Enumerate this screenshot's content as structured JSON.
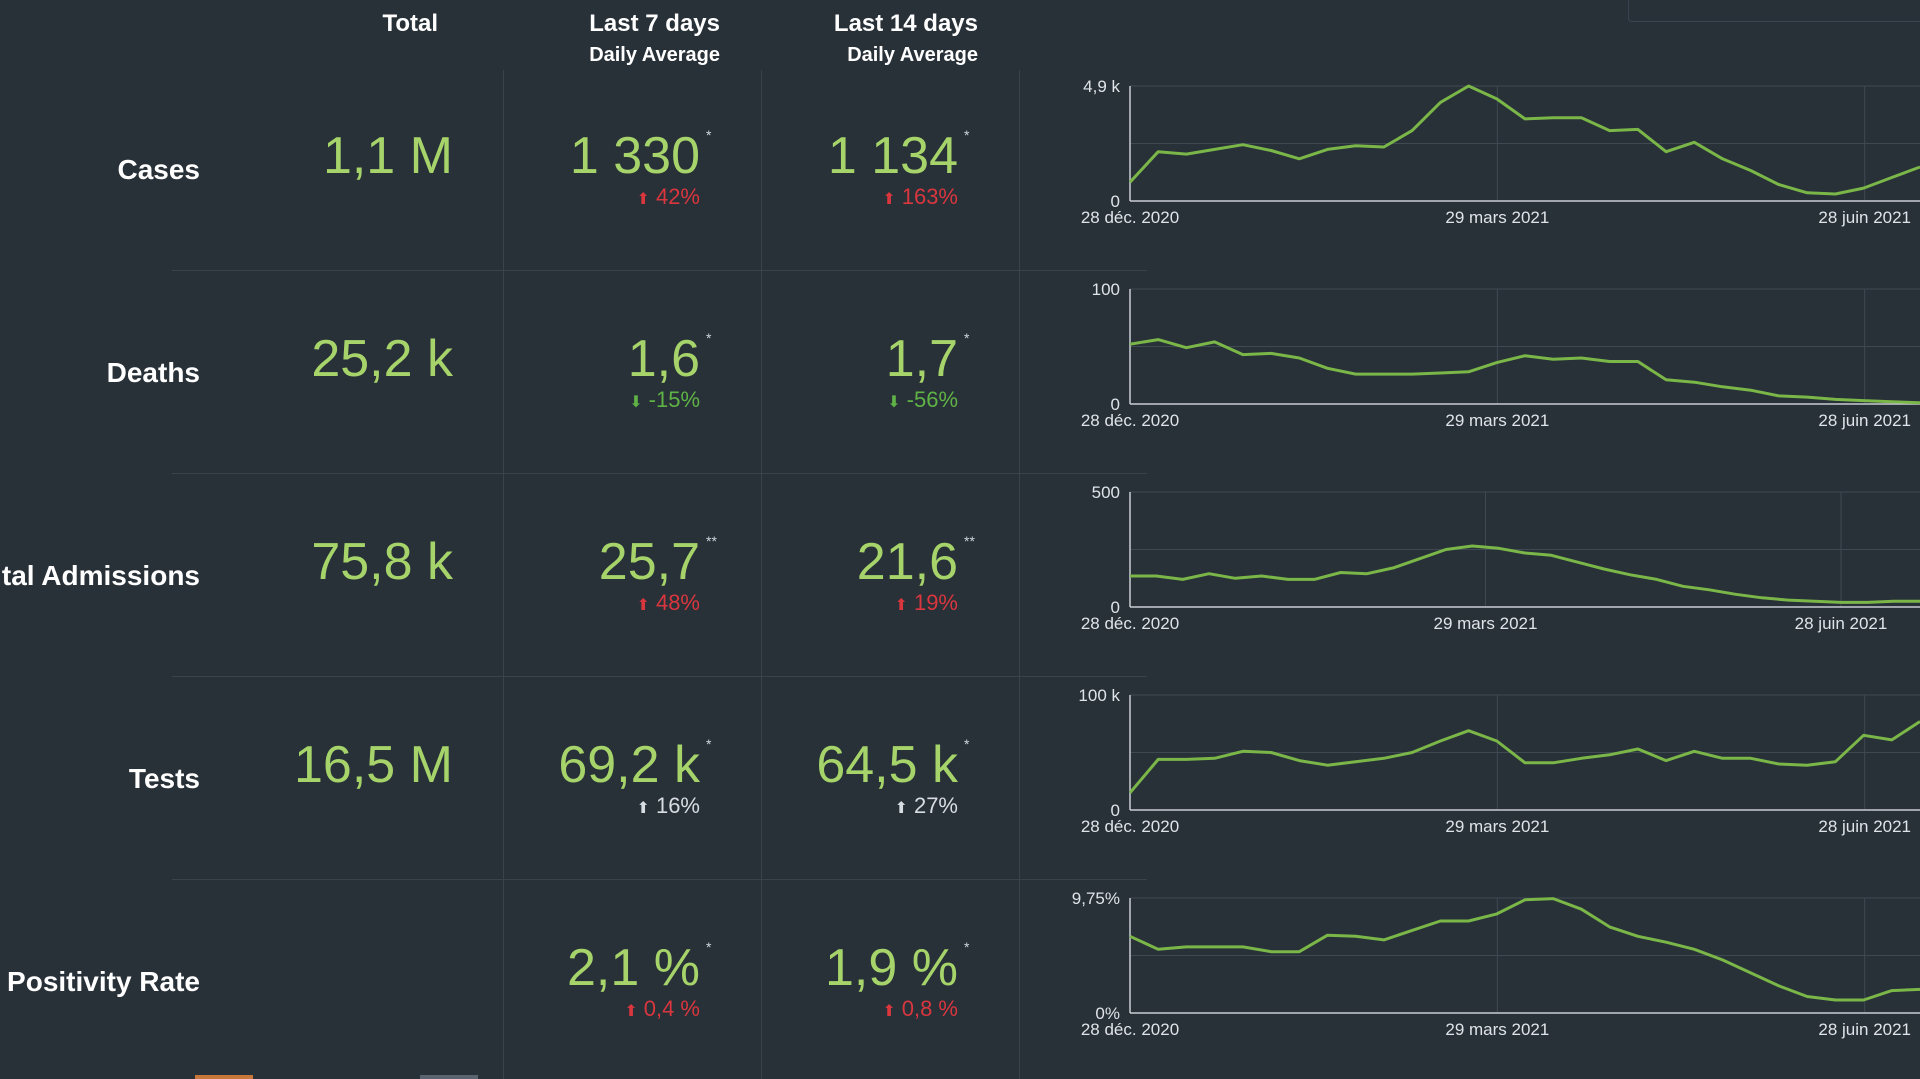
{
  "headers": {
    "total": "Total",
    "last7": "Last 7 days",
    "last7_sub": "Daily Average",
    "last14": "Last 14 days",
    "last14_sub": "Daily Average"
  },
  "colors": {
    "background": "#283038",
    "value_green": "#a6d46a",
    "line_green": "#7ab648",
    "increase_red": "#d9363e",
    "decrease_green": "#5fb346"
  },
  "rows": [
    {
      "label": "Cases",
      "total": "1,1 M",
      "avg7": "1 330",
      "avg7_mark": "*",
      "chg7": "42%",
      "chg7_dir": "up",
      "avg14": "1 134",
      "avg14_mark": "*",
      "chg14": "163%",
      "chg14_dir": "up",
      "chart": {
        "ymax_label": "4,9 k",
        "ymin_label": "0",
        "ymax": 4900,
        "xlabels": [
          "28 déc. 2020",
          "29 mars 2021",
          "28 juin 2021"
        ],
        "values": [
          800,
          2100,
          2000,
          2200,
          2400,
          2150,
          1800,
          2200,
          2350,
          2300,
          3000,
          4200,
          4900,
          4350,
          3500,
          3550,
          3550,
          3000,
          3050,
          2100,
          2500,
          1800,
          1300,
          700,
          350,
          300,
          550,
          1000,
          1450
        ]
      }
    },
    {
      "label": "Deaths",
      "total": "25,2 k",
      "avg7": "1,6",
      "avg7_mark": "*",
      "chg7": "-15%",
      "chg7_dir": "down",
      "avg14": "1,7",
      "avg14_mark": "*",
      "chg14": "-56%",
      "chg14_dir": "down",
      "chart": {
        "ymax_label": "100",
        "ymin_label": "0",
        "ymax": 100,
        "xlabels": [
          "28 déc. 2020",
          "29 mars 2021",
          "28 juin 2021"
        ],
        "values": [
          52,
          56,
          49,
          54,
          43,
          44,
          40,
          31,
          26,
          26,
          26,
          27,
          28,
          36,
          42,
          39,
          40,
          37,
          37,
          21,
          19,
          15,
          12,
          7,
          6,
          4,
          3,
          2,
          1
        ]
      }
    },
    {
      "label": "Hospital Admissions",
      "total": "75,8 k",
      "avg7": "25,7",
      "avg7_mark": "**",
      "chg7": "48%",
      "chg7_dir": "up",
      "avg14": "21,6",
      "avg14_mark": "**",
      "chg14": "19%",
      "chg14_dir": "up",
      "chart": {
        "ymax_label": "500",
        "ymin_label": "0",
        "ymax": 500,
        "xlabels": [
          "28 déc. 2020",
          "29 mars 2021",
          "28 juin 2021"
        ],
        "values": [
          135,
          135,
          120,
          145,
          125,
          135,
          120,
          120,
          150,
          145,
          170,
          210,
          250,
          265,
          255,
          235,
          225,
          195,
          165,
          140,
          120,
          90,
          75,
          55,
          40,
          30,
          25,
          20,
          20,
          25,
          25
        ]
      }
    },
    {
      "label": "Tests",
      "total": "16,5 M",
      "avg7": "69,2 k",
      "avg7_mark": "*",
      "chg7": "16%",
      "chg7_dir": "neutral",
      "avg14": "64,5 k",
      "avg14_mark": "*",
      "chg14": "27%",
      "chg14_dir": "neutral",
      "chart": {
        "ymax_label": "100 k",
        "ymin_label": "0",
        "ymax": 100000,
        "xlabels": [
          "28 déc. 2020",
          "29 mars 2021",
          "28 juin 2021"
        ],
        "values": [
          15000,
          44000,
          44000,
          45000,
          51000,
          50000,
          43000,
          39000,
          42000,
          45000,
          50000,
          60000,
          69000,
          60000,
          41000,
          41000,
          45000,
          48000,
          53000,
          43000,
          51000,
          45000,
          45000,
          40000,
          39000,
          42000,
          65000,
          61000,
          77000
        ]
      }
    },
    {
      "label": "Positivity Rate",
      "total": "",
      "avg7": "2,1 %",
      "avg7_mark": "*",
      "chg7": "0,4 %",
      "chg7_dir": "up",
      "avg14": "1,9 %",
      "avg14_mark": "*",
      "chg14": "0,8 %",
      "chg14_dir": "up",
      "chart": {
        "ymax_label": "9,75%",
        "ymin_label": "0%",
        "ymax": 9.75,
        "xlabels": [
          "28 déc. 2020",
          "29 mars 2021",
          "28 juin 2021"
        ],
        "values": [
          6.5,
          5.4,
          5.6,
          5.6,
          5.6,
          5.2,
          5.2,
          6.6,
          6.5,
          6.2,
          7.0,
          7.8,
          7.8,
          8.4,
          9.6,
          9.7,
          8.8,
          7.3,
          6.5,
          6.0,
          5.4,
          4.5,
          3.4,
          2.3,
          1.4,
          1.1,
          1.1,
          1.9,
          2.0
        ]
      }
    }
  ]
}
